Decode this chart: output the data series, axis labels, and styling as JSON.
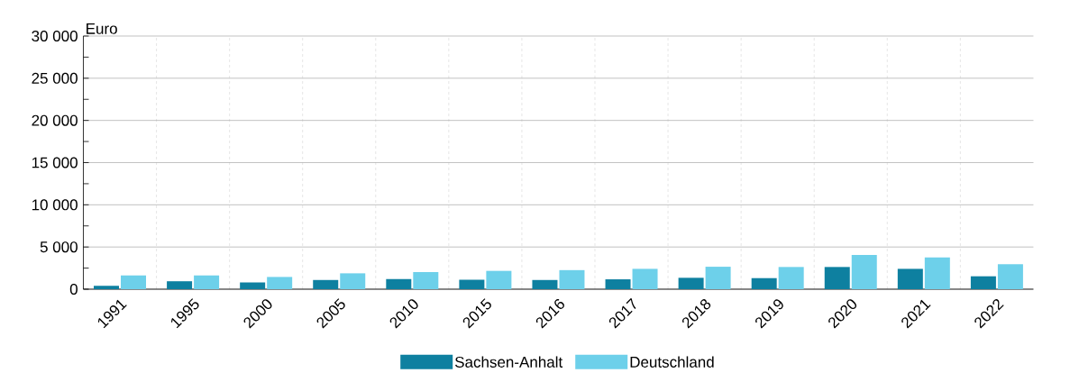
{
  "chart_data": {
    "type": "bar",
    "ylabel": "Euro",
    "categories": [
      "1991",
      "1995",
      "2000",
      "2005",
      "2010",
      "2015",
      "2016",
      "2017",
      "2018",
      "2019",
      "2020",
      "2021",
      "2022"
    ],
    "series": [
      {
        "name": "Sachsen-Anhalt",
        "color": "#0e80a0",
        "values": [
          400,
          940,
          800,
          1090,
          1200,
          1120,
          1090,
          1170,
          1350,
          1310,
          2630,
          2410,
          1530
        ]
      },
      {
        "name": "Deutschland",
        "color": "#6dd0ea",
        "values": [
          1630,
          1630,
          1450,
          1880,
          2030,
          2170,
          2260,
          2410,
          2660,
          2630,
          4050,
          3760,
          2960
        ]
      }
    ],
    "ylim": [
      0,
      30000
    ],
    "yticks": [
      0,
      {
        "value": 5000,
        "label": "5 000"
      },
      {
        "value": 10000,
        "label": "10 000"
      },
      {
        "value": 15000,
        "label": "15 000"
      },
      {
        "value": 20000,
        "label": "20 000"
      },
      {
        "value": 25000,
        "label": "25 000"
      },
      {
        "value": 30000,
        "label": "30 000"
      }
    ],
    "grid": true,
    "legend": "bottom"
  }
}
